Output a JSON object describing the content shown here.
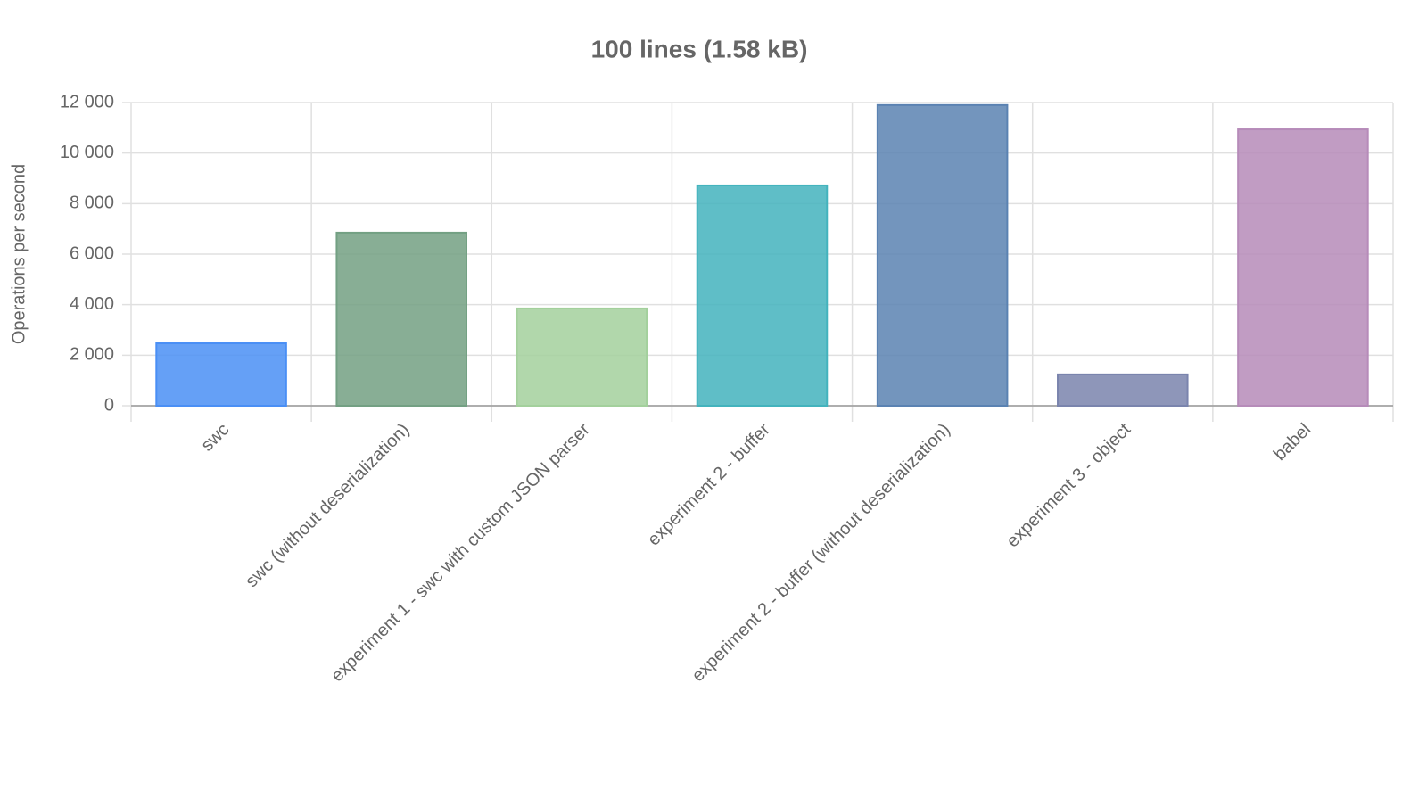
{
  "chart_data": {
    "type": "bar",
    "title": "100 lines (1.58 kB)",
    "y_label": "Operations per second",
    "categories": [
      "swc",
      "swc (without deserialization)",
      "experiment 1 - swc with custom JSON parser",
      "experiment 2 - buffer",
      "experiment 2 - buffer (without deserialization)",
      "experiment 3 - object",
      "babel"
    ],
    "values": [
      2470,
      6850,
      3850,
      8720,
      11900,
      1240,
      10940
    ],
    "colors": [
      "#4a8ff5",
      "#73a083",
      "#a3d09c",
      "#43b3bd",
      "#5a82b2",
      "#7a84ad",
      "#b68bb9"
    ],
    "ylim": [
      0,
      12000
    ],
    "yticks": [
      0,
      {
        "value": 2000,
        "label": "2 000"
      },
      {
        "value": 4000,
        "label": "4 000"
      },
      {
        "value": 6000,
        "label": "6 000"
      },
      {
        "value": 8000,
        "label": "8 000"
      },
      {
        "value": 10000,
        "label": "10 000"
      },
      {
        "value": 12000,
        "label": "12 000"
      }
    ],
    "grid": true
  }
}
